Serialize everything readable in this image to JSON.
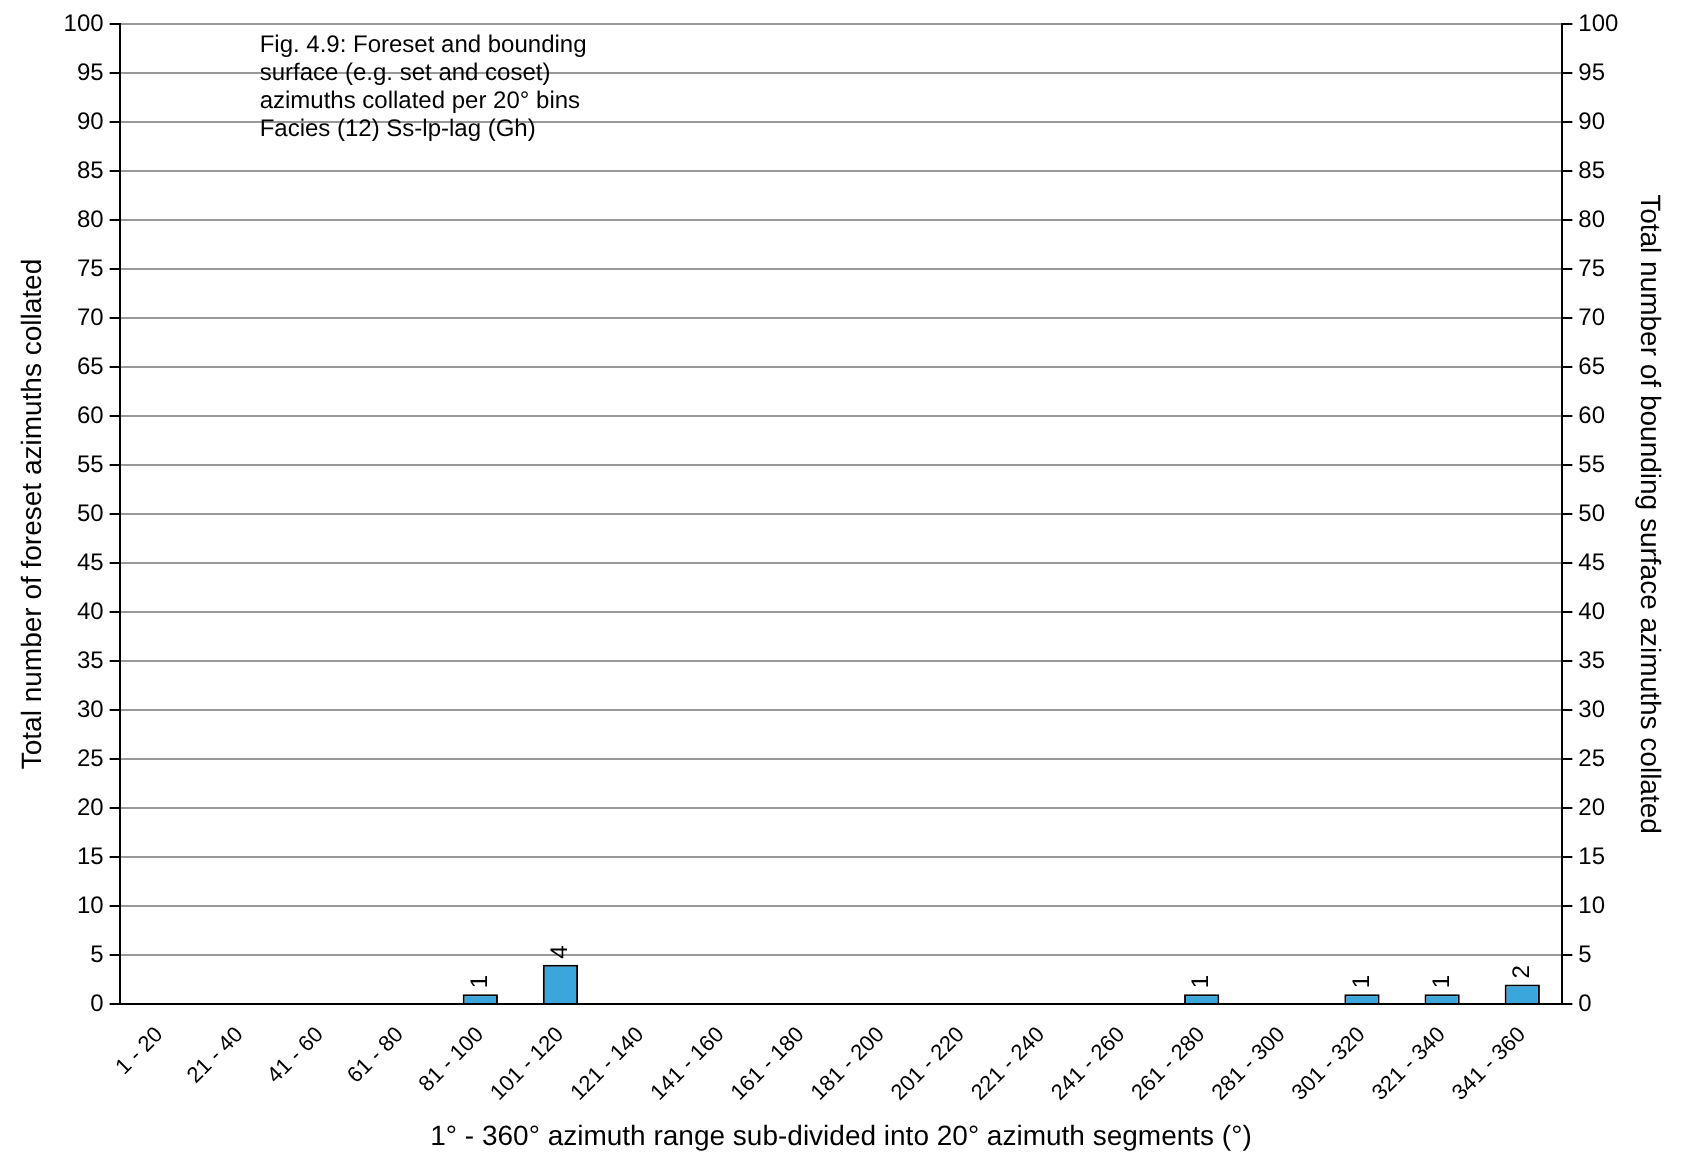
{
  "chart_data": {
    "type": "bar",
    "categories": [
      "1 - 20",
      "21 - 40",
      "41 - 60",
      "61 - 80",
      "81 - 100",
      "101 - 120",
      "121 - 140",
      "141 - 160",
      "161 - 180",
      "181 - 200",
      "201 - 220",
      "221 - 240",
      "241 - 260",
      "261 - 280",
      "281 - 300",
      "301 - 320",
      "321 - 340",
      "341 - 360"
    ],
    "values": [
      0,
      0,
      0,
      0,
      1,
      4,
      0,
      0,
      0,
      0,
      0,
      0,
      0,
      1,
      0,
      1,
      1,
      2
    ],
    "value_labels": [
      null,
      null,
      null,
      null,
      "1",
      "4",
      null,
      null,
      null,
      null,
      null,
      null,
      null,
      "1",
      null,
      "1",
      "1",
      "2"
    ],
    "color": "#3aa6dc",
    "xlabel": "1° - 360° azimuth range sub-divided into 20° azimuth segments (°)",
    "ylabel": "Total number of foreset azimuths collated",
    "y2label": "Total number of bounding surface azimuths collated",
    "ylim": [
      0,
      100
    ],
    "yticks": [
      0,
      5,
      10,
      15,
      20,
      25,
      30,
      35,
      40,
      45,
      50,
      55,
      60,
      65,
      70,
      75,
      80,
      85,
      90,
      95,
      100
    ],
    "y2lim": [
      0,
      100
    ],
    "y2ticks": [
      0,
      5,
      10,
      15,
      20,
      25,
      30,
      35,
      40,
      45,
      50,
      55,
      60,
      65,
      70,
      75,
      80,
      85,
      90,
      95,
      100
    ],
    "grid": "y",
    "legend": false,
    "annotations": [
      "Fig. 4.9: Foreset and bounding surface (e.g. set and coset) azimuths collated per 20° bins\nFacies (12) Ss-lp-lag (Gh)"
    ]
  }
}
